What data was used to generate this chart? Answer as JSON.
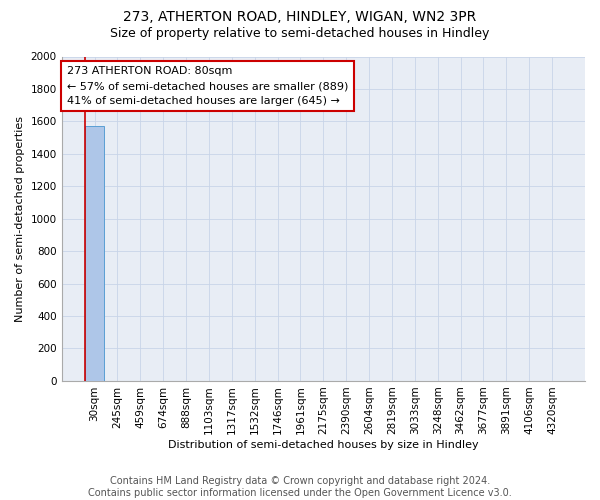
{
  "title": "273, ATHERTON ROAD, HINDLEY, WIGAN, WN2 3PR",
  "subtitle": "Size of property relative to semi-detached houses in Hindley",
  "xlabel": "Distribution of semi-detached houses by size in Hindley",
  "ylabel": "Number of semi-detached properties",
  "footer_line1": "Contains HM Land Registry data © Crown copyright and database right 2024.",
  "footer_line2": "Contains public sector information licensed under the Open Government Licence v3.0.",
  "bin_labels": [
    "30sqm",
    "245sqm",
    "459sqm",
    "674sqm",
    "888sqm",
    "1103sqm",
    "1317sqm",
    "1532sqm",
    "1746sqm",
    "1961sqm",
    "2175sqm",
    "2390sqm",
    "2604sqm",
    "2819sqm",
    "3033sqm",
    "3248sqm",
    "3462sqm",
    "3677sqm",
    "3891sqm",
    "4106sqm",
    "4320sqm"
  ],
  "bar_heights": [
    1570,
    0,
    0,
    0,
    0,
    0,
    0,
    0,
    0,
    0,
    0,
    0,
    0,
    0,
    0,
    0,
    0,
    0,
    0,
    0,
    0
  ],
  "bar_color": "#aec6e8",
  "bar_edge_color": "#5a9fd4",
  "property_line_color": "#cc0000",
  "annotation_title": "273 ATHERTON ROAD: 80sqm",
  "annotation_line1": "← 57% of semi-detached houses are smaller (889)",
  "annotation_line2": "41% of semi-detached houses are larger (645) →",
  "annotation_box_facecolor": "#ffffff",
  "annotation_box_edgecolor": "#cc0000",
  "ylim": [
    0,
    2000
  ],
  "yticks": [
    0,
    200,
    400,
    600,
    800,
    1000,
    1200,
    1400,
    1600,
    1800,
    2000
  ],
  "grid_color": "#c8d4e8",
  "bg_color": "#e8edf5",
  "title_fontsize": 10,
  "subtitle_fontsize": 9,
  "axis_label_fontsize": 8,
  "tick_fontsize": 7.5,
  "annotation_fontsize": 8,
  "footer_fontsize": 7
}
